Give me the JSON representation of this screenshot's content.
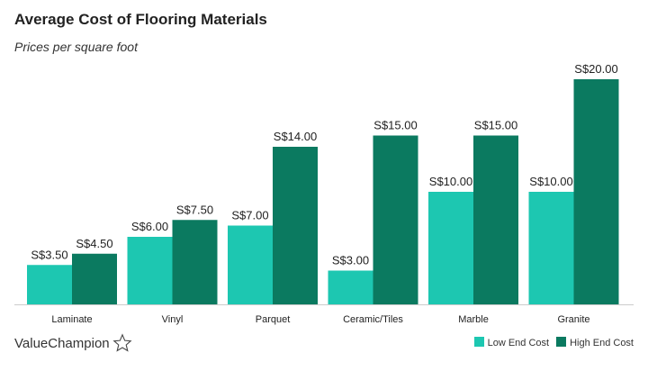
{
  "chart_data": {
    "type": "bar",
    "title": "Average Cost of Flooring Materials",
    "subtitle": "Prices per square foot",
    "categories": [
      "Laminate",
      "Vinyl",
      "Parquet",
      "Ceramic/Tiles",
      "Marble",
      "Granite"
    ],
    "series": [
      {
        "name": "Low End Cost",
        "color": "#1dc7b1",
        "values": [
          3.5,
          6,
          7,
          3,
          10,
          10
        ],
        "labels": [
          "S$3.50",
          "S$6.00",
          "S$7.00",
          "S$3.00",
          "S$10.00",
          "S$10.00"
        ]
      },
      {
        "name": "High End Cost",
        "color": "#0b7a60",
        "values": [
          4.5,
          7.5,
          14,
          15,
          15,
          20
        ],
        "labels": [
          "S$4.50",
          "S$7.50",
          "S$14.00",
          "S$15.00",
          "S$15.00",
          "S$20.00"
        ]
      }
    ],
    "ylim": [
      0,
      20
    ],
    "grid": false,
    "legend": "bottom-right"
  },
  "brand": "ValueChampion"
}
